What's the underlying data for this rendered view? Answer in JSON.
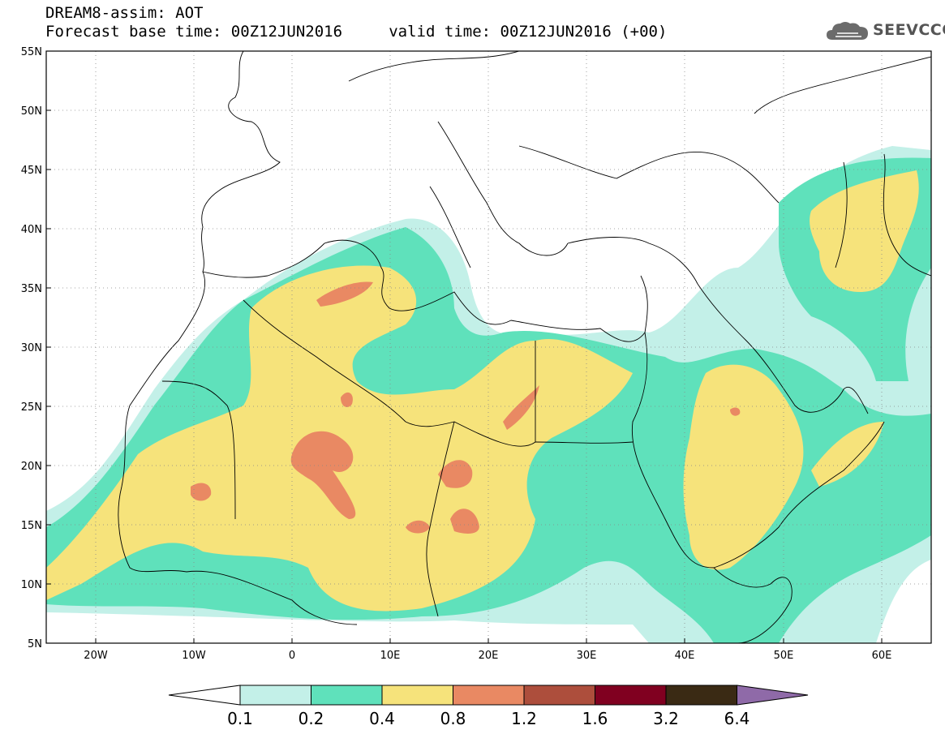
{
  "header": {
    "line1": "DREAM8-assim: AOT",
    "line2": "Forecast base time: 00Z12JUN2016     valid time: 00Z12JUN2016 (+00)",
    "logo_text": "SEEVCCC",
    "logo_icon": "cloud-icon"
  },
  "map": {
    "lon_range": [
      -25,
      65
    ],
    "lat_range": [
      5,
      55
    ],
    "lat_labels": [
      "55N",
      "50N",
      "45N",
      "40N",
      "35N",
      "30N",
      "25N",
      "20N",
      "15N",
      "10N",
      "5N"
    ],
    "lon_labels": [
      "20W",
      "10W",
      "0",
      "10E",
      "20E",
      "30E",
      "40E",
      "50E",
      "60E"
    ],
    "grid": "dotted"
  },
  "colorbar": {
    "labels": [
      "0.1",
      "0.2",
      "0.4",
      "0.8",
      "1.2",
      "1.6",
      "3.2",
      "6.4"
    ],
    "colors": [
      "#c3f0e8",
      "#5fe1bb",
      "#f6e37b",
      "#e98963",
      "#ad4e3c",
      "#800020",
      "#3a2a14"
    ],
    "over_color": "#8f6aa8",
    "under_color": "#ffffff"
  },
  "colors": {
    "c01": "#c3f0e8",
    "c02": "#5fe1bb",
    "c04": "#f6e37b",
    "c08": "#e98963"
  }
}
